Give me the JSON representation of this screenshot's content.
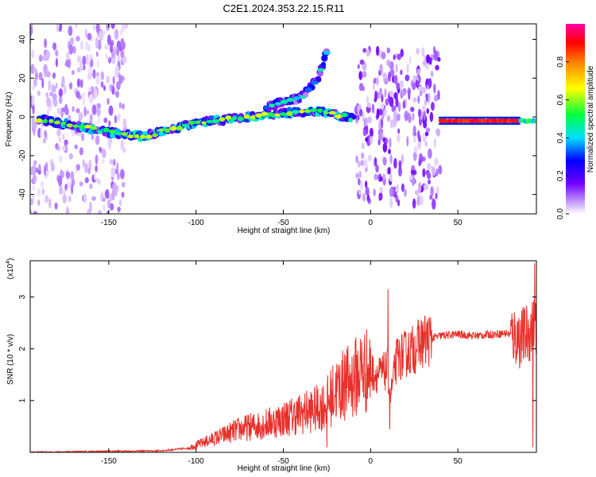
{
  "title": "C2E1.2024.353.22.15.R11",
  "chart_data": [
    {
      "type": "heatmap",
      "xlabel": "Height of straight line (km)",
      "ylabel": "Frequency (Hz)",
      "xlim": [
        -195,
        95
      ],
      "ylim": [
        -50,
        48
      ],
      "xticks": [
        -150,
        -100,
        -50,
        0,
        50
      ],
      "yticks": [
        -40,
        -20,
        0,
        20,
        40
      ],
      "grid": false,
      "colorbar": {
        "label": "Normalized spectral amplitude",
        "range": [
          0,
          1
        ],
        "ticks": [
          0.0,
          0.2,
          0.4,
          0.6,
          0.8
        ],
        "tick_labels": [
          "0.0",
          "0.2",
          "0.4",
          "0.6",
          "0.8"
        ],
        "colors": [
          "#ffffff",
          "#c8a0ff",
          "#7000ff",
          "#0000ff",
          "#00e0ff",
          "#00ff40",
          "#ffff00",
          "#ff8000",
          "#ff0000",
          "#ff00a0"
        ]
      },
      "features": [
        {
          "kind": "main-trace",
          "x": [
            -190,
            -150,
            -130,
            -100,
            -70,
            -50,
            -30,
            -10
          ],
          "y": [
            -1,
            -8,
            -10,
            -3,
            0,
            2,
            3,
            -1
          ],
          "amplitude": 0.35
        },
        {
          "kind": "rising-branch",
          "x": [
            -60,
            -40,
            -30,
            -25
          ],
          "y": [
            5,
            10,
            20,
            34
          ],
          "amplitude": 0.25
        },
        {
          "kind": "steady-line",
          "x": [
            40,
            85
          ],
          "y": [
            -2,
            -2
          ],
          "amplitude": 0.95
        },
        {
          "kind": "scatter-cloud",
          "x": [
            -195,
            -140
          ],
          "y": [
            -50,
            48
          ],
          "amplitude": 0.15
        },
        {
          "kind": "scatter-cloud",
          "x": [
            -8,
            40
          ],
          "y": [
            -45,
            35
          ],
          "amplitude": 0.2
        }
      ]
    },
    {
      "type": "line",
      "xlabel": "Height of straight line (km)",
      "ylabel": "SNR (10 * v/v)",
      "y_multiplier": "(x10",
      "y_multiplier_exp": "4",
      "y_multiplier_close": ")",
      "xlim": [
        -195,
        95
      ],
      "ylim": [
        0,
        3.7
      ],
      "xticks": [
        -150,
        -100,
        -50,
        0,
        50
      ],
      "yticks": [
        1,
        2,
        3
      ],
      "color": "#e8302a",
      "envelope": {
        "x": [
          -195,
          -150,
          -120,
          -105,
          -95,
          -85,
          -75,
          -60,
          -50,
          -40,
          -30,
          -25,
          -20,
          -10,
          -5,
          5,
          10,
          11,
          15,
          20,
          25,
          30,
          35,
          40,
          50,
          60,
          70,
          78,
          82,
          86,
          90,
          93,
          95
        ],
        "y": [
          0.0,
          0.02,
          0.03,
          0.08,
          0.2,
          0.32,
          0.45,
          0.55,
          0.65,
          0.75,
          0.85,
          0.95,
          1.2,
          1.4,
          1.6,
          1.5,
          1.6,
          1.0,
          1.8,
          1.9,
          2.0,
          2.15,
          2.2,
          2.25,
          2.28,
          2.25,
          2.28,
          2.3,
          2.25,
          2.2,
          2.3,
          2.4,
          2.5
        ]
      },
      "spikes": [
        {
          "x": 10,
          "y": 3.15
        },
        {
          "x": 11,
          "y": 0.45
        },
        {
          "x": -25,
          "y": 0.1
        },
        {
          "x": -15,
          "y": 1.9
        },
        {
          "x": 94,
          "y": 3.65
        },
        {
          "x": 93,
          "y": 0.1
        }
      ]
    }
  ]
}
